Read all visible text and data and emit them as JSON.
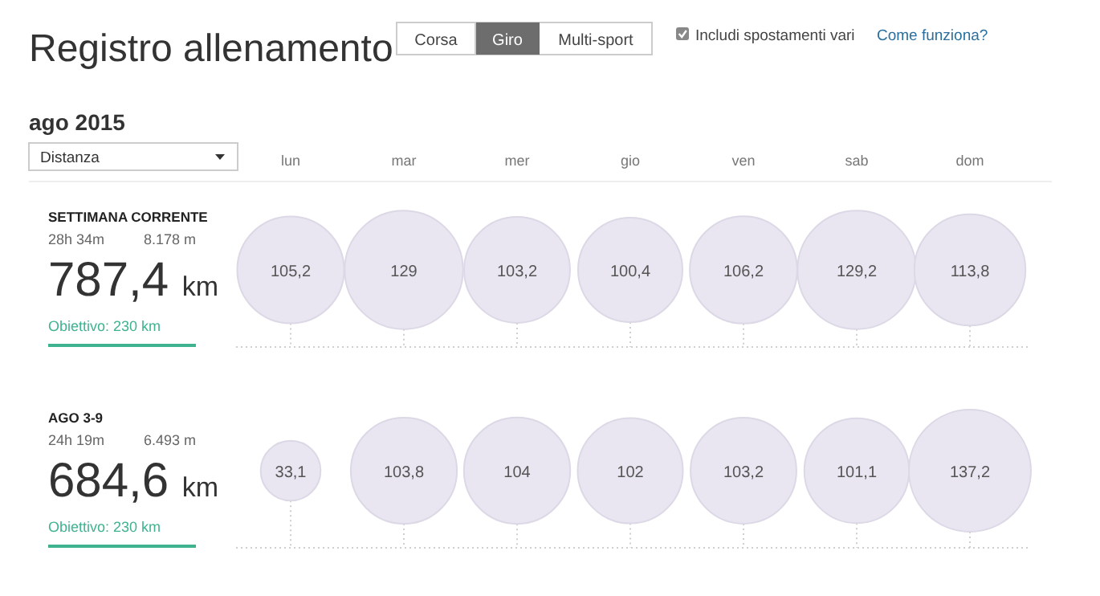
{
  "chart_data": [
    {
      "type": "other",
      "title": "Registro allenamento",
      "subtitle": "ago 2015",
      "color": "#e9e6f1",
      "categories": [
        "lun",
        "mar",
        "mer",
        "gio",
        "ven",
        "sab",
        "dom"
      ],
      "values": [
        105.2,
        129,
        103.2,
        100.4,
        106.2,
        129.2,
        113.8
      ],
      "value_labels": [
        "105,2",
        "129",
        "103,2",
        "100,4",
        "106,2",
        "129,2",
        "113,8"
      ],
      "annotations": [
        "Corsa",
        "Giro",
        "Multi-sport",
        "Includi spostamenti vari",
        "Come funziona?",
        "Distanza",
        "SETTIMANA CORRENTE",
        "28h 34m",
        "8.178 m",
        "787,4 km",
        "Obiettivo: 230 km"
      ]
    },
    {
      "type": "other",
      "color": "#e9e6f1",
      "categories": [
        null,
        null,
        null,
        null,
        null,
        null,
        null
      ],
      "values": [
        33.1,
        103.8,
        104,
        102,
        103.2,
        101.1,
        137.2
      ],
      "value_labels": [
        "33,1",
        "103,8",
        "104",
        "102",
        "103,2",
        "101,1",
        "137,2"
      ],
      "annotations": [
        "AGO 3-9",
        "24h 19m",
        "6.493 m",
        "684,6 km",
        "Obiettivo: 230 km"
      ]
    }
  ]
}
